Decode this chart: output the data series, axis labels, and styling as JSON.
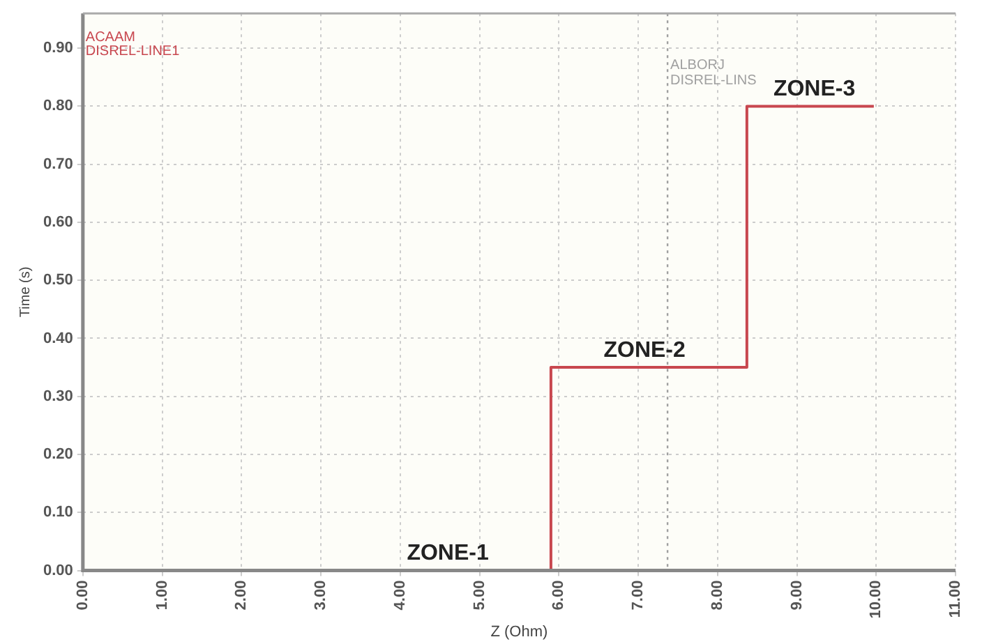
{
  "chart_data": {
    "type": "step",
    "xlabel": "Z (Ohm)",
    "ylabel": "Time (s)",
    "x": [
      0,
      5.9,
      8.37,
      9.97
    ],
    "series": [
      {
        "name": "ACAAM\nDISREL-LINE1",
        "color": "#c8474f",
        "values": [
          0,
          0.35,
          0.8,
          0.8
        ]
      }
    ],
    "xlim": [
      0,
      11
    ],
    "ylim": [
      0,
      0.96
    ],
    "xticks": [
      {
        "value": 0,
        "label": "0.00"
      },
      {
        "value": 1,
        "label": "1.00"
      },
      {
        "value": 2,
        "label": "2.00"
      },
      {
        "value": 3,
        "label": "3.00"
      },
      {
        "value": 4,
        "label": "4.00"
      },
      {
        "value": 5,
        "label": "5.00"
      },
      {
        "value": 6,
        "label": "6.00"
      },
      {
        "value": 7,
        "label": "7.00"
      },
      {
        "value": 8,
        "label": "8.00"
      },
      {
        "value": 9,
        "label": "9.00"
      },
      {
        "value": 10,
        "label": "10.00"
      },
      {
        "value": 11,
        "label": "11.00"
      }
    ],
    "yticks": [
      {
        "value": 0,
        "label": "0.00"
      },
      {
        "value": 0.1,
        "label": "0.10"
      },
      {
        "value": 0.2,
        "label": "0.20"
      },
      {
        "value": 0.3,
        "label": "0.30"
      },
      {
        "value": 0.4,
        "label": "0.40"
      },
      {
        "value": 0.5,
        "label": "0.50"
      },
      {
        "value": 0.6,
        "label": "0.60"
      },
      {
        "value": 0.7,
        "label": "0.70"
      },
      {
        "value": 0.8,
        "label": "0.80"
      },
      {
        "value": 0.9,
        "label": "0.90"
      }
    ],
    "ref_lines": [
      {
        "axis": "x",
        "value": 7.37,
        "label": "ALBORJ\nDISREL-LINS",
        "color": "#a0a0a0",
        "line_style": "dotted"
      }
    ],
    "annotations": [
      {
        "text": "ZONE-1",
        "x": 4.6,
        "y": 0
      },
      {
        "text": "ZONE-2",
        "x": 7.08,
        "y": 0.35
      },
      {
        "text": "ZONE-3",
        "x": 9.22,
        "y": 0.8
      }
    ],
    "grid": true,
    "legend": false,
    "marker": "none",
    "line_style": "solid"
  }
}
